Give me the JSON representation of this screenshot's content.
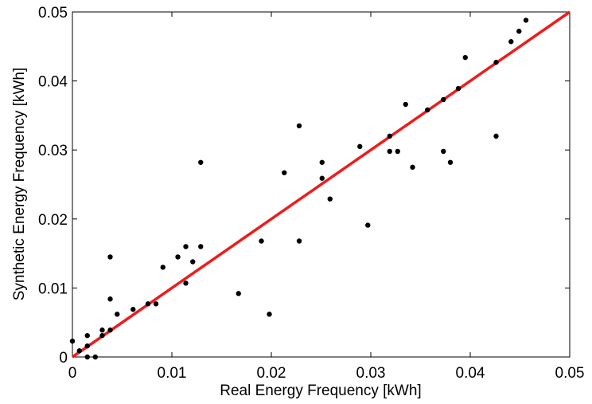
{
  "chart_data": {
    "type": "scatter",
    "xlabel": "Real Energy Frequency [kWh]",
    "ylabel": "Synthetic Energy Frequency [kWh]",
    "xlim": [
      0,
      0.05
    ],
    "ylim": [
      0,
      0.05
    ],
    "xticks": [
      0,
      0.01,
      0.02,
      0.03,
      0.04,
      0.05
    ],
    "yticks": [
      0,
      0.01,
      0.02,
      0.03,
      0.04,
      0.05
    ],
    "xtick_labels": [
      "0",
      "0.01",
      "0.02",
      "0.03",
      "0.04",
      "0.05"
    ],
    "ytick_labels": [
      "0",
      "0.01",
      "0.02",
      "0.03",
      "0.04",
      "0.05"
    ],
    "grid": false,
    "legend": "none",
    "series": [
      {
        "marker_color": "#000000",
        "points": [
          [
            0.0,
            0.0023
          ],
          [
            0.0007,
            0.0009
          ],
          [
            0.0015,
            0.0031
          ],
          [
            0.0015,
            0.0016
          ],
          [
            0.0015,
            0.0
          ],
          [
            0.0023,
            0.0
          ],
          [
            0.003,
            0.0039
          ],
          [
            0.003,
            0.0031
          ],
          [
            0.0038,
            0.0145
          ],
          [
            0.0038,
            0.0084
          ],
          [
            0.0038,
            0.0039
          ],
          [
            0.0045,
            0.0062
          ],
          [
            0.0061,
            0.0069
          ],
          [
            0.0076,
            0.0077
          ],
          [
            0.0084,
            0.0077
          ],
          [
            0.0091,
            0.013
          ],
          [
            0.0106,
            0.0145
          ],
          [
            0.0114,
            0.016
          ],
          [
            0.0114,
            0.0107
          ],
          [
            0.0121,
            0.0138
          ],
          [
            0.0129,
            0.0282
          ],
          [
            0.0129,
            0.016
          ],
          [
            0.0167,
            0.0092
          ],
          [
            0.019,
            0.0168
          ],
          [
            0.0198,
            0.0062
          ],
          [
            0.0213,
            0.0267
          ],
          [
            0.0228,
            0.0335
          ],
          [
            0.0228,
            0.0168
          ],
          [
            0.0251,
            0.0282
          ],
          [
            0.0251,
            0.0259
          ],
          [
            0.0259,
            0.0229
          ],
          [
            0.0289,
            0.0305
          ],
          [
            0.0297,
            0.0191
          ],
          [
            0.0319,
            0.032
          ],
          [
            0.0319,
            0.0298
          ],
          [
            0.0327,
            0.0298
          ],
          [
            0.0335,
            0.0366
          ],
          [
            0.0342,
            0.0275
          ],
          [
            0.0357,
            0.0358
          ],
          [
            0.0373,
            0.0373
          ],
          [
            0.0373,
            0.0298
          ],
          [
            0.038,
            0.0282
          ],
          [
            0.0388,
            0.0389
          ],
          [
            0.0395,
            0.0434
          ],
          [
            0.0426,
            0.0427
          ],
          [
            0.0426,
            0.032
          ],
          [
            0.0441,
            0.0457
          ],
          [
            0.0449,
            0.0472
          ],
          [
            0.0456,
            0.0488
          ]
        ]
      },
      {
        "line_color": "#ee1c1c",
        "line": [
          [
            0,
            0
          ],
          [
            0.05,
            0.05
          ]
        ]
      }
    ]
  }
}
